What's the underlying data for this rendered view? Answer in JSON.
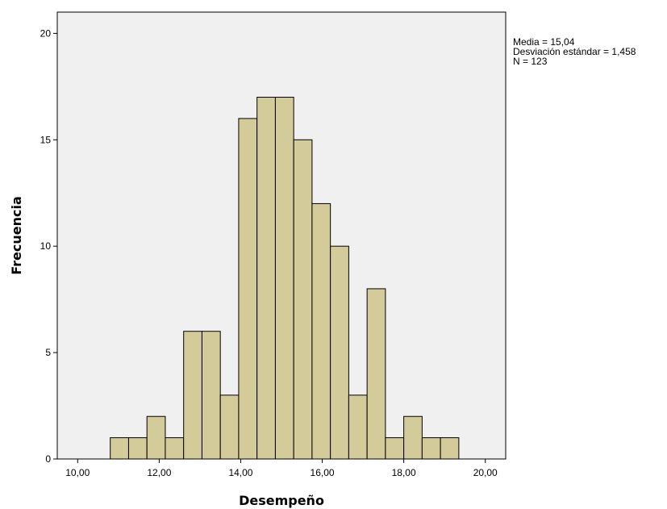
{
  "chart_data": {
    "type": "bar",
    "title": "",
    "xlabel": "Desempeño",
    "ylabel": "Frecuencia",
    "xlim": [
      9.5,
      20.5
    ],
    "ylim": [
      0,
      21
    ],
    "bin_width": 0.45,
    "x_ticks": [
      {
        "value": 10,
        "label": "10,00"
      },
      {
        "value": 12,
        "label": "12,00"
      },
      {
        "value": 14,
        "label": "14,00"
      },
      {
        "value": 16,
        "label": "16,00"
      },
      {
        "value": 18,
        "label": "18,00"
      },
      {
        "value": 20,
        "label": "20,00"
      }
    ],
    "y_ticks": [
      {
        "value": 0,
        "label": "0"
      },
      {
        "value": 5,
        "label": "5"
      },
      {
        "value": 10,
        "label": "10"
      },
      {
        "value": 15,
        "label": "15"
      },
      {
        "value": 20,
        "label": "20"
      }
    ],
    "bins": [
      {
        "start": 10.8,
        "count": 1
      },
      {
        "start": 11.25,
        "count": 1
      },
      {
        "start": 11.7,
        "count": 2
      },
      {
        "start": 12.15,
        "count": 1
      },
      {
        "start": 12.6,
        "count": 6
      },
      {
        "start": 13.05,
        "count": 6
      },
      {
        "start": 13.5,
        "count": 3
      },
      {
        "start": 13.95,
        "count": 16
      },
      {
        "start": 14.4,
        "count": 17
      },
      {
        "start": 14.85,
        "count": 17
      },
      {
        "start": 15.3,
        "count": 15
      },
      {
        "start": 15.75,
        "count": 12
      },
      {
        "start": 16.2,
        "count": 10
      },
      {
        "start": 16.65,
        "count": 3
      },
      {
        "start": 17.1,
        "count": 8
      },
      {
        "start": 17.55,
        "count": 1
      },
      {
        "start": 18.0,
        "count": 2
      },
      {
        "start": 18.45,
        "count": 1
      },
      {
        "start": 18.9,
        "count": 1
      }
    ],
    "grid": false,
    "colors": {
      "bar_fill": "#d4cb9b",
      "bar_stroke": "#000000",
      "plot_background": "#f0f0f0",
      "axis": "#000000"
    }
  },
  "stats": {
    "mean": "Media = 15,04",
    "std": "Desviación estándar = 1,458",
    "n": "N = 123"
  }
}
